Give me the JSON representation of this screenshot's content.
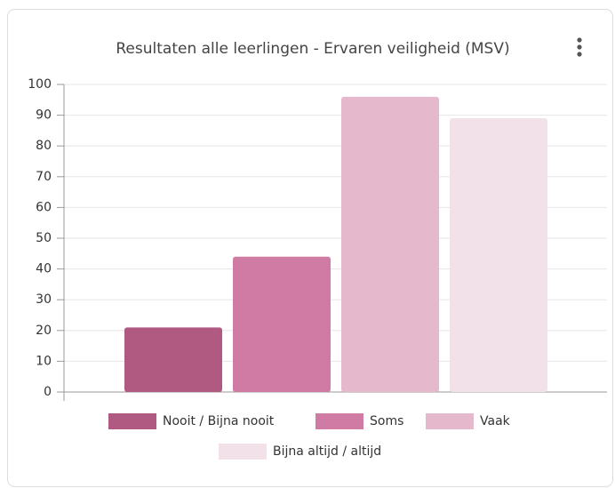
{
  "chart_data": {
    "type": "bar",
    "title": "Resultaten alle leerlingen - Ervaren veiligheid (MSV)",
    "categories": [
      null
    ],
    "series": [
      {
        "name": "Nooit / Bijna nooit",
        "color": "#b05a82",
        "values": [
          21
        ]
      },
      {
        "name": "Soms",
        "color": "#d07ba3",
        "values": [
          44
        ]
      },
      {
        "name": "Vaak",
        "color": "#e6b8cc",
        "values": [
          96
        ]
      },
      {
        "name": "Bijna altijd / altijd",
        "color": "#f3e1e9",
        "values": [
          89
        ]
      }
    ],
    "ylim": [
      0,
      100
    ],
    "yticks": [
      0,
      10,
      20,
      30,
      40,
      50,
      60,
      70,
      80,
      90,
      100
    ],
    "grid": true
  }
}
